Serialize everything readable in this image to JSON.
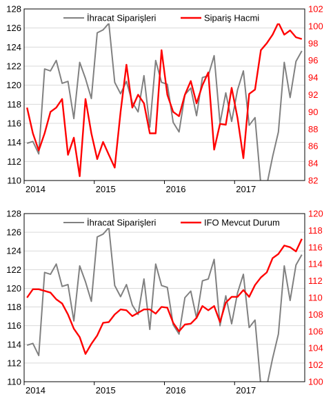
{
  "colors": {
    "left_series": "#808080",
    "right_series": "#ff0000",
    "right_axis_text": "#ff0000",
    "left_axis_text": "#000000",
    "grid": "#d9d9d9"
  },
  "chart_data": [
    {
      "type": "line",
      "title": "",
      "legend_position": "top",
      "x_tick_labels": [
        "2014",
        "2015",
        "2016",
        "2017"
      ],
      "y_left_ticks": [
        "110",
        "112",
        "114",
        "116",
        "118",
        "120",
        "122",
        "124",
        "126",
        "128"
      ],
      "y_right_ticks": [
        "82",
        "84",
        "86",
        "88",
        "90",
        "92",
        "94",
        "96",
        "98",
        "100",
        "102"
      ],
      "ylim_left": [
        110,
        128
      ],
      "ylim_right": [
        82,
        102
      ],
      "grid": true,
      "series": [
        {
          "name": "İhracat Siparişleri",
          "axis": "left",
          "values": [
            113.9,
            114.1,
            112.8,
            121.7,
            121.5,
            122.6,
            120.2,
            120.4,
            116.5,
            122.4,
            120.7,
            118.6,
            125.5,
            125.8,
            126.5,
            120.3,
            119.1,
            120.4,
            118.2,
            117.2,
            121.0,
            115.6,
            122.6,
            120.3,
            120.1,
            116.1,
            115.1,
            119.0,
            119.7,
            116.8,
            120.8,
            121.0,
            123.1,
            116.0,
            119.2,
            116.2,
            119.5,
            121.5,
            115.8,
            116.6,
            109.5,
            109.5,
            112.5,
            115.1,
            122.4,
            118.7,
            122.5,
            123.6
          ]
        },
        {
          "name": "Sipariş Hacmi",
          "axis": "right",
          "values": [
            90.5,
            87.5,
            85.5,
            87.5,
            90.0,
            90.5,
            91.5,
            85.0,
            87.0,
            82.5,
            91.5,
            87.5,
            84.5,
            86.5,
            85.0,
            83.5,
            90.0,
            95.5,
            90.5,
            92.0,
            91.0,
            87.5,
            87.5,
            97.2,
            92.0,
            90.0,
            89.5,
            92.0,
            93.6,
            91.0,
            93.1,
            94.6,
            85.6,
            88.6,
            88.5,
            92.8,
            89.3,
            84.6,
            92.1,
            92.6,
            97.2,
            98.0,
            99.0,
            100.4,
            99.0,
            99.5,
            98.7,
            98.5
          ]
        }
      ]
    },
    {
      "type": "line",
      "title": "",
      "legend_position": "top",
      "x_tick_labels": [
        "2014",
        "2015",
        "2016",
        "2017"
      ],
      "y_left_ticks": [
        "110",
        "112",
        "114",
        "116",
        "118",
        "120",
        "122",
        "124",
        "126",
        "128"
      ],
      "y_right_ticks": [
        "100",
        "102",
        "104",
        "106",
        "108",
        "110",
        "112",
        "114",
        "116",
        "118",
        "120"
      ],
      "ylim_left": [
        110,
        128
      ],
      "ylim_right": [
        100,
        120
      ],
      "grid": true,
      "series": [
        {
          "name": "İhracat Siparişleri",
          "axis": "left",
          "values": [
            113.9,
            114.1,
            112.8,
            121.7,
            121.5,
            122.6,
            120.2,
            120.4,
            116.5,
            122.4,
            120.7,
            118.6,
            125.5,
            125.8,
            126.5,
            120.3,
            119.1,
            120.4,
            118.2,
            117.2,
            121.0,
            115.6,
            122.6,
            120.3,
            120.1,
            116.1,
            115.1,
            119.0,
            119.7,
            116.8,
            120.8,
            121.0,
            123.1,
            116.0,
            119.2,
            116.2,
            119.5,
            121.5,
            115.8,
            116.6,
            109.5,
            109.5,
            112.5,
            115.1,
            122.4,
            118.7,
            122.5,
            123.6
          ]
        },
        {
          "name": "IFO Mevcut Durum",
          "axis": "right",
          "values": [
            110.0,
            111.0,
            111.0,
            110.8,
            110.6,
            109.8,
            109.3,
            108.0,
            106.3,
            105.3,
            103.3,
            104.5,
            105.5,
            107.0,
            107.1,
            108.0,
            108.6,
            108.5,
            107.8,
            108.2,
            108.6,
            108.6,
            108.1,
            108.9,
            108.8,
            107.0,
            106.0,
            106.8,
            106.9,
            107.6,
            109.0,
            108.5,
            109.0,
            107.1,
            109.4,
            110.1,
            110.1,
            110.9,
            110.1,
            111.5,
            112.4,
            113.0,
            114.7,
            115.2,
            116.2,
            116.0,
            115.5,
            117.0
          ]
        }
      ]
    }
  ]
}
